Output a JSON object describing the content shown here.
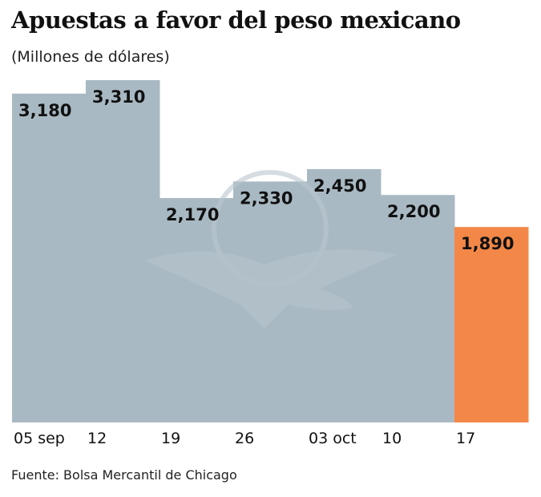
{
  "chart_data": {
    "type": "bar",
    "title": "Apuestas a favor del peso mexicano",
    "subtitle": "(Millones de dólares)",
    "categories": [
      "05 sep",
      "12",
      "19",
      "26",
      "03 oct",
      "10",
      "17"
    ],
    "values": [
      3180,
      3310,
      2170,
      2330,
      2450,
      2200,
      1890
    ],
    "value_labels": [
      "3,180",
      "3,310",
      "2,170",
      "2,330",
      "2,450",
      "2,200",
      "1,890"
    ],
    "highlight_index": 6,
    "ylim": [
      0,
      3310
    ],
    "xlabel": "",
    "ylabel": "",
    "grid": false,
    "source": "Fuente: Bolsa Mercantil de Chicago",
    "colors": {
      "bar": "#a9b9c3",
      "highlight": "#f38748",
      "label": "#111111"
    }
  }
}
